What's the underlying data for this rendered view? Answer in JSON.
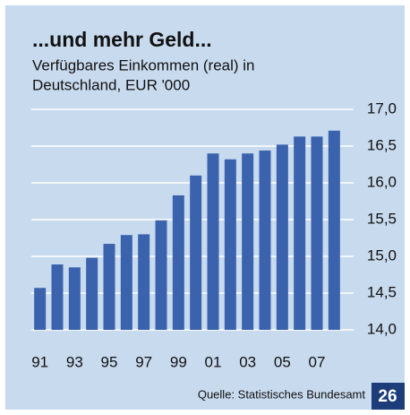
{
  "chart_data": {
    "type": "bar",
    "title": "...und mehr Geld...",
    "subtitle": [
      "Verfügbares Einkommen (real) in",
      "Deutschland, EUR '000"
    ],
    "categories": [
      "91",
      null,
      "93",
      null,
      "95",
      null,
      "97",
      null,
      "99",
      null,
      "01",
      null,
      "03",
      null,
      "05",
      null,
      "07",
      null
    ],
    "values": [
      14.57,
      14.89,
      14.85,
      14.98,
      15.17,
      15.29,
      15.3,
      15.49,
      15.83,
      16.1,
      16.4,
      16.32,
      16.4,
      16.44,
      16.52,
      16.63,
      16.63,
      16.71
    ],
    "color": "#3a62ad",
    "ylim": [
      14.0,
      17.0
    ],
    "yticks": [
      {
        "value": 14.0,
        "label": "14,0"
      },
      {
        "value": 14.5,
        "label": "14,5"
      },
      {
        "value": 15.0,
        "label": "15,0"
      },
      {
        "value": 15.5,
        "label": "15,5"
      },
      {
        "value": 16.0,
        "label": "16,0"
      },
      {
        "value": 16.5,
        "label": "16,5"
      },
      {
        "value": 17.0,
        "label": "17,0"
      }
    ],
    "grid": true,
    "source": "Quelle: Statistisches Bundesamt",
    "page_number": "26"
  }
}
